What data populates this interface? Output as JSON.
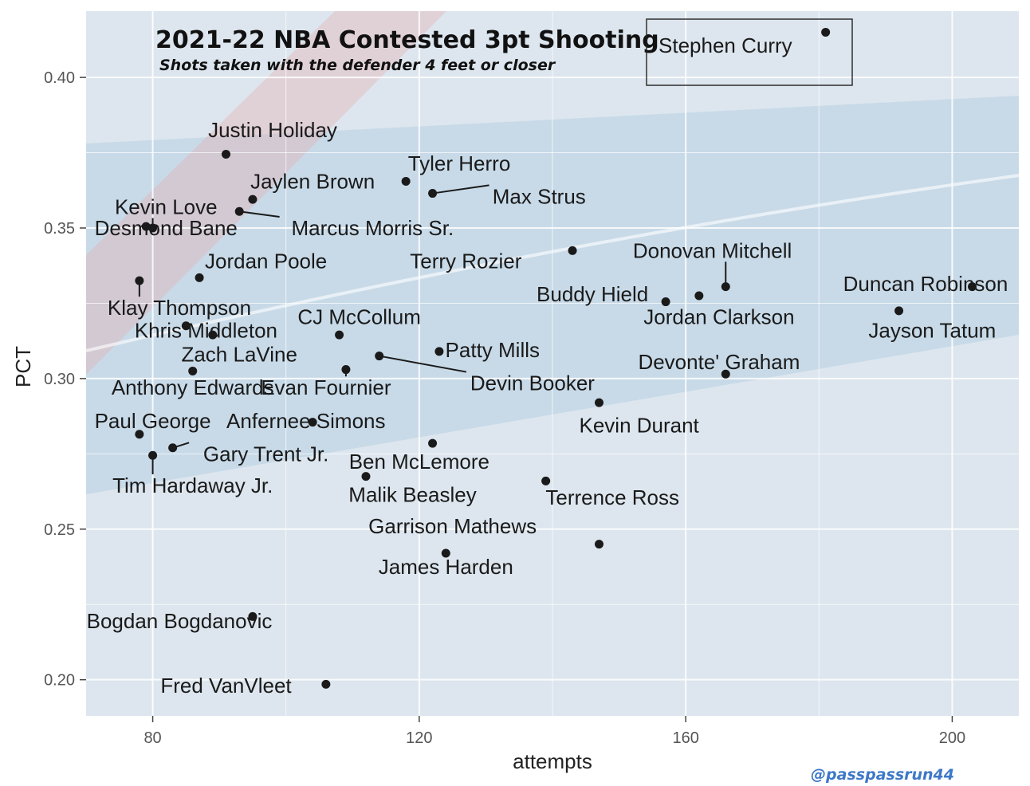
{
  "colors": {
    "panel_bg": "#dde6ee",
    "court_blue": "#b7cfe3",
    "court_red": "#e6a9ad",
    "grid": "#ffffff",
    "point": "#1a1a1a",
    "credit": "#3d78c7"
  },
  "chart_data": {
    "type": "scatter",
    "title": "2021-22 NBA  Contested 3pt Shooting",
    "subtitle": "Shots taken with the defender 4 feet or closer",
    "xlabel": "attempts",
    "ylabel": "PCT",
    "xlim": [
      70,
      210
    ],
    "ylim": [
      0.188,
      0.422
    ],
    "xticks": [
      {
        "value": 80,
        "label": "80"
      },
      {
        "value": 120,
        "label": "120"
      },
      {
        "value": 160,
        "label": "160"
      },
      {
        "value": 200,
        "label": "200"
      }
    ],
    "yticks": [
      {
        "value": 0.2,
        "label": "0.20"
      },
      {
        "value": 0.25,
        "label": "0.25"
      },
      {
        "value": 0.3,
        "label": "0.30"
      },
      {
        "value": 0.35,
        "label": "0.35"
      },
      {
        "value": 0.4,
        "label": "0.40"
      }
    ],
    "grid": true,
    "legend": {
      "position": "top-right",
      "entry": "Stephen Curry",
      "x": 181,
      "y": 0.415
    },
    "points": [
      {
        "name": "Justin Holiday",
        "x": 91,
        "y": 0.3745,
        "lx": 98,
        "ly": 0.3825
      },
      {
        "name": "Tyler Herro",
        "x": 118,
        "y": 0.3655,
        "lx": 126,
        "ly": 0.3715
      },
      {
        "name": "Max Strus",
        "x": 122,
        "y": 0.3615,
        "lx": 138,
        "ly": 0.3605,
        "leader": true
      },
      {
        "name": "Jaylen Brown",
        "x": 95,
        "y": 0.3595,
        "lx": 104,
        "ly": 0.3655
      },
      {
        "name": "Kevin Love",
        "x": 80,
        "y": 0.35,
        "lx": 82,
        "ly": 0.357,
        "leader": true
      },
      {
        "name": "Marcus Morris Sr.",
        "x": 93,
        "y": 0.3555,
        "lx": 113,
        "ly": 0.35,
        "leader": true
      },
      {
        "name": "Desmond Bane",
        "x": 79,
        "y": 0.3505,
        "lx": 82,
        "ly": 0.35
      },
      {
        "name": "Terry Rozier",
        "x": 143,
        "y": 0.3425,
        "lx": 127,
        "ly": 0.339
      },
      {
        "name": "Donovan Mitchell",
        "x": 166,
        "y": 0.3305,
        "lx": 164,
        "ly": 0.3425,
        "leader": true
      },
      {
        "name": "Duncan Robinson",
        "x": 203,
        "y": 0.3305,
        "lx": 196,
        "ly": 0.3315
      },
      {
        "name": "Jordan Poole",
        "x": 87,
        "y": 0.3335,
        "lx": 97,
        "ly": 0.339
      },
      {
        "name": "Klay Thompson",
        "x": 78,
        "y": 0.3325,
        "lx": 84,
        "ly": 0.3235,
        "leader": true
      },
      {
        "name": "Buddy Hield",
        "x": 157,
        "y": 0.3255,
        "lx": 146,
        "ly": 0.328
      },
      {
        "name": "Jordan Clarkson",
        "x": 162,
        "y": 0.3275,
        "lx": 165,
        "ly": 0.3205
      },
      {
        "name": "Jayson Tatum",
        "x": 192,
        "y": 0.3225,
        "lx": 197,
        "ly": 0.316
      },
      {
        "name": "Khris Middleton",
        "x": 85,
        "y": 0.3175,
        "lx": 88,
        "ly": 0.316
      },
      {
        "name": "CJ McCollum",
        "x": 108,
        "y": 0.3145,
        "lx": 111,
        "ly": 0.3205
      },
      {
        "name": "Zach LaVine",
        "x": 89,
        "y": 0.3145,
        "lx": 93,
        "ly": 0.308
      },
      {
        "name": "Patty Mills",
        "x": 123,
        "y": 0.309,
        "lx": 131,
        "ly": 0.3095
      },
      {
        "name": "Devin Booker",
        "x": 114,
        "y": 0.3075,
        "lx": 137,
        "ly": 0.2985,
        "leader": true
      },
      {
        "name": "Devonte' Graham",
        "x": 166,
        "y": 0.3015,
        "lx": 165,
        "ly": 0.3055
      },
      {
        "name": "Evan Fournier",
        "x": 109,
        "y": 0.303,
        "lx": 106,
        "ly": 0.297,
        "leader": true
      },
      {
        "name": "Anthony Edwards",
        "x": 86,
        "y": 0.3025,
        "lx": 86,
        "ly": 0.297
      },
      {
        "name": "Kevin Durant",
        "x": 147,
        "y": 0.292,
        "lx": 153,
        "ly": 0.2845
      },
      {
        "name": "Anfernee Simons",
        "x": 104,
        "y": 0.2855,
        "lx": 103,
        "ly": 0.286
      },
      {
        "name": "Paul George",
        "x": 78,
        "y": 0.2815,
        "lx": 80,
        "ly": 0.286
      },
      {
        "name": "Ben McLemore",
        "x": 122,
        "y": 0.2785,
        "lx": 120,
        "ly": 0.2725
      },
      {
        "name": "Gary Trent Jr.",
        "x": 83,
        "y": 0.277,
        "lx": 97,
        "ly": 0.275,
        "leader": true
      },
      {
        "name": "Tim Hardaway Jr.",
        "x": 80,
        "y": 0.2745,
        "lx": 86,
        "ly": 0.2645,
        "leader": true
      },
      {
        "name": "Malik Beasley",
        "x": 112,
        "y": 0.2675,
        "lx": 119,
        "ly": 0.2615
      },
      {
        "name": "Terrence Ross",
        "x": 139,
        "y": 0.266,
        "lx": 149,
        "ly": 0.2605
      },
      {
        "name": "Garrison Mathews",
        "x": 147,
        "y": 0.245,
        "lx": 125,
        "ly": 0.251
      },
      {
        "name": "James Harden",
        "x": 124,
        "y": 0.242,
        "lx": 124,
        "ly": 0.2375
      },
      {
        "name": "Bogdan Bogdanovic",
        "x": 95,
        "y": 0.221,
        "lx": 84,
        "ly": 0.2195
      },
      {
        "name": "Fred VanVleet",
        "x": 106,
        "y": 0.1985,
        "lx": 91,
        "ly": 0.198
      }
    ]
  },
  "credit": "@passpassrun44"
}
